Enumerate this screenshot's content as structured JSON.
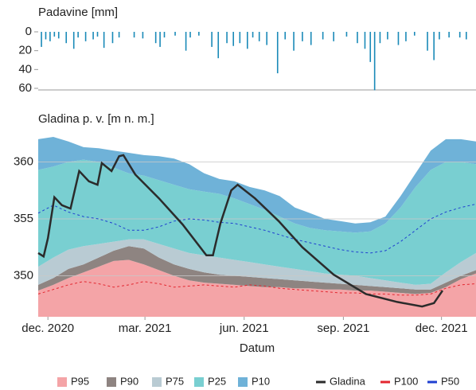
{
  "chart_data": [
    {
      "type": "bar",
      "title": "Padavine [mm]",
      "color": "#1a8ab8",
      "y_inverted": true,
      "xlim": [
        -9,
        397
      ],
      "ylim": [
        0,
        60
      ],
      "yticks": [
        0,
        20,
        40,
        60
      ],
      "grid": false,
      "x": [
        -6,
        -2,
        2,
        6,
        10,
        17,
        24,
        28,
        35,
        42,
        46,
        52,
        60,
        66,
        80,
        88,
        100,
        104,
        108,
        118,
        128,
        132,
        140,
        152,
        158,
        166,
        172,
        178,
        185,
        190,
        196,
        203,
        213,
        220,
        228,
        236,
        244,
        255,
        265,
        277,
        287,
        294,
        299,
        303,
        308,
        315,
        325,
        332,
        340,
        352,
        358,
        363,
        372,
        382,
        388
      ],
      "values": [
        16,
        8,
        10,
        5,
        7,
        12,
        18,
        6,
        10,
        8,
        5,
        17,
        12,
        6,
        6,
        7,
        12,
        16,
        6,
        4,
        20,
        6,
        4,
        16,
        28,
        12,
        15,
        12,
        18,
        6,
        10,
        14,
        44,
        8,
        20,
        10,
        14,
        8,
        10,
        5,
        12,
        18,
        32,
        62,
        12,
        8,
        14,
        10,
        4,
        20,
        30,
        8,
        6,
        6,
        8
      ]
    },
    {
      "type": "percentile",
      "title": "Gladina p. v. [m n. m.]",
      "x_label": "Datum",
      "grid": true,
      "xlim": [
        -9,
        397
      ],
      "ylim": [
        346.4,
        362.2
      ],
      "yticks": [
        350,
        355,
        360
      ],
      "xticks": [
        {
          "value": 0,
          "label": "dec. 2020"
        },
        {
          "value": 90,
          "label": "mar. 2021"
        },
        {
          "value": 182,
          "label": "jun. 2021"
        },
        {
          "value": 274,
          "label": "sep. 2021"
        },
        {
          "value": 365,
          "label": "dec. 2021"
        }
      ],
      "x": [
        -9,
        5,
        19,
        33,
        47,
        61,
        75,
        89,
        103,
        117,
        131,
        145,
        159,
        173,
        187,
        201,
        215,
        229,
        243,
        257,
        271,
        285,
        299,
        313,
        327,
        341,
        355,
        369,
        383,
        397
      ],
      "series": [
        {
          "name": "P95",
          "color": "#f4a4a7",
          "style": "fill",
          "values": [
            348.7,
            349.2,
            349.8,
            350.3,
            350.8,
            351.3,
            351.4,
            351,
            350.5,
            350,
            349.6,
            349.4,
            349.3,
            349.2,
            349.1,
            349,
            349,
            348.9,
            348.9,
            348.8,
            348.8,
            348.7,
            348.7,
            348.6,
            348.5,
            348.4,
            348.5,
            349,
            349.7,
            350.2
          ]
        },
        {
          "name": "P90",
          "color": "#8e8481",
          "style": "fill",
          "values": [
            349.2,
            349.8,
            350.6,
            351,
            351.6,
            352.2,
            352.6,
            352.4,
            351.6,
            351,
            350.6,
            350.3,
            350.1,
            350,
            349.9,
            349.8,
            349.7,
            349.6,
            349.5,
            349.4,
            349.3,
            349.2,
            349.1,
            349,
            348.9,
            348.8,
            348.8,
            349.4,
            350,
            350.5
          ]
        },
        {
          "name": "P75",
          "color": "#b9cbd3",
          "style": "fill",
          "values": [
            350.8,
            351.6,
            352.3,
            352.6,
            352.8,
            353,
            353.2,
            353.2,
            352.8,
            352.4,
            352,
            351.8,
            351.6,
            351.4,
            351.2,
            351,
            350.8,
            350.6,
            350.4,
            350.2,
            350.1,
            350,
            349.8,
            349.6,
            349.4,
            349.2,
            349.3,
            350.3,
            351.2,
            352
          ]
        },
        {
          "name": "P25",
          "color": "#79cfd1",
          "style": "fill",
          "values": [
            359.3,
            359.6,
            360,
            360.2,
            360,
            359.5,
            359,
            358.8,
            358.4,
            358,
            357.6,
            357.4,
            357.2,
            356.8,
            356.3,
            355.8,
            355.2,
            354.6,
            354.2,
            354,
            353.9,
            353.8,
            353.9,
            354.6,
            356,
            357.8,
            359.3,
            360,
            360,
            359.8
          ]
        },
        {
          "name": "P10",
          "color": "#6fb2d8",
          "style": "fill",
          "values": [
            362,
            362.2,
            361.8,
            361.3,
            361.2,
            361,
            360.8,
            360.6,
            360.5,
            360.3,
            359.8,
            359,
            358.5,
            358.3,
            357.8,
            357.5,
            357,
            356,
            355.5,
            355,
            354.8,
            354.6,
            354.7,
            355.2,
            357,
            359,
            361,
            362,
            362,
            361.8
          ]
        },
        {
          "name": "Gladina",
          "color": "#2b2b2b",
          "style": "line",
          "x": [
            -9,
            -4,
            0,
            6,
            13,
            21,
            29,
            38,
            46,
            50,
            59,
            66,
            70,
            81,
            103,
            125,
            147,
            153,
            160,
            170,
            176,
            192,
            214,
            236,
            265,
            295,
            324,
            347,
            358,
            366
          ],
          "values": [
            352,
            351.7,
            353.3,
            356.9,
            356.2,
            355.9,
            359.2,
            358.3,
            358,
            359.9,
            359.2,
            360.5,
            360.6,
            358.9,
            356.8,
            354.5,
            351.8,
            351.8,
            354.6,
            357.5,
            358,
            356.8,
            354.8,
            352.5,
            350.1,
            348.4,
            347.7,
            347.3,
            347.6,
            348.7
          ]
        },
        {
          "name": "P100",
          "color": "#e3262f",
          "style": "dashed",
          "values": [
            348.4,
            348.8,
            349.2,
            349.5,
            349.3,
            349,
            349.2,
            349.5,
            349.3,
            349,
            349.1,
            349.2,
            349.1,
            349,
            349.2,
            349.1,
            348.9,
            348.8,
            348.7,
            348.6,
            348.5,
            348.5,
            348.4,
            348.4,
            348.3,
            348.3,
            348.4,
            348.9,
            349.2,
            349.3
          ]
        },
        {
          "name": "P50",
          "color": "#1f3fd0",
          "style": "dashed",
          "values": [
            355.5,
            356.2,
            355.6,
            355.2,
            355,
            354.6,
            354,
            354,
            354.3,
            354.8,
            355,
            354.9,
            354.7,
            354.6,
            354.3,
            354,
            353.6,
            353.2,
            352.9,
            352.6,
            352.3,
            352.1,
            352,
            352.2,
            353,
            354,
            355,
            355.6,
            356,
            356.3
          ]
        }
      ]
    }
  ]
}
